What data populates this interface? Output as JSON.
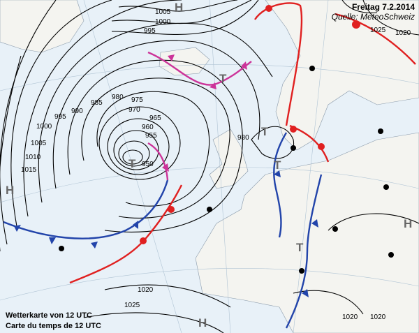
{
  "header": {
    "title": "Freitag 7.2.2014",
    "source": "Quelle: MeteoSchweiz"
  },
  "caption": {
    "de": "Wetterkarte von 12 UTC",
    "fr": "Carte du temps de 12 UTC"
  },
  "colors": {
    "sea": "#e8f1f8",
    "land": "#f4f4f0",
    "isobar": "#000000",
    "cold_front": "#2244aa",
    "warm_front": "#e02020",
    "occlusion": "#cc3399",
    "station_red": "#e02020"
  },
  "isobar_labels": [
    {
      "text": "950"
    },
    {
      "text": "955"
    },
    {
      "text": "960"
    },
    {
      "text": "965"
    },
    {
      "text": "970"
    },
    {
      "text": "975"
    },
    {
      "text": "980"
    },
    {
      "text": "985"
    },
    {
      "text": "990"
    },
    {
      "text": "995"
    },
    {
      "text": "1000"
    },
    {
      "text": "1005"
    },
    {
      "text": "1010"
    },
    {
      "text": "1015"
    },
    {
      "text": "1020"
    },
    {
      "text": "1025"
    },
    {
      "text": "1005"
    },
    {
      "text": "1000"
    },
    {
      "text": "995"
    },
    {
      "text": "980"
    },
    {
      "text": "1020"
    },
    {
      "text": "1025"
    },
    {
      "text": "1020"
    },
    {
      "text": "1020"
    }
  ],
  "pressure_centers": [
    {
      "type": "H"
    },
    {
      "type": "H"
    },
    {
      "type": "H"
    },
    {
      "type": "H"
    },
    {
      "type": "T"
    },
    {
      "type": "T"
    },
    {
      "type": "T"
    },
    {
      "type": "T"
    },
    {
      "type": "T"
    }
  ]
}
